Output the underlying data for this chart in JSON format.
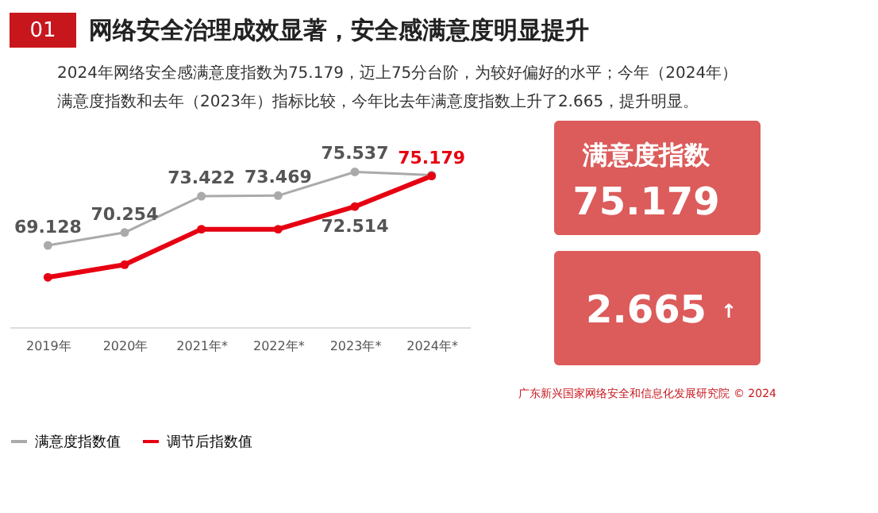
{
  "chart_data": {
    "type": "line",
    "title": "网络安全治理成效显著，安全感满意度明显提升",
    "subtitle": "2024年网络安全感满意度指数为75.179，迈上75分台阶，为较好偏好的水平；今年（2024年）满意度指数和去年（2023年）指标比较，今年比去年满意度指数上升了2.665，提升明显。",
    "categories": [
      "2019年",
      "2020年",
      "2021年*",
      "2022年*",
      "2023年*",
      "2024年*"
    ],
    "series": [
      {
        "name": "满意度指数值",
        "color": "#aaaaaa",
        "values": [
          69.128,
          70.254,
          73.422,
          73.469,
          75.537,
          75.26
        ],
        "value_labels": [
          "69.128",
          "70.254",
          "73.422",
          "73.469",
          "75.537",
          null
        ]
      },
      {
        "name": "调节后指数值",
        "color": "#e60012",
        "values": [
          66.35,
          67.45,
          70.54,
          70.54,
          72.514,
          75.179
        ],
        "value_labels": [
          null,
          null,
          null,
          null,
          "72.514",
          "75.179"
        ]
      }
    ],
    "tick_labels": "x",
    "grid": false,
    "legend": "bottom",
    "marker": "circle",
    "line_style": "solid",
    "annotations": [
      "01",
      "满意度指数",
      "75.179",
      "2.665",
      "↑",
      "广东新兴国家网络安全和信息化发展研究院 © 2024"
    ]
  }
}
